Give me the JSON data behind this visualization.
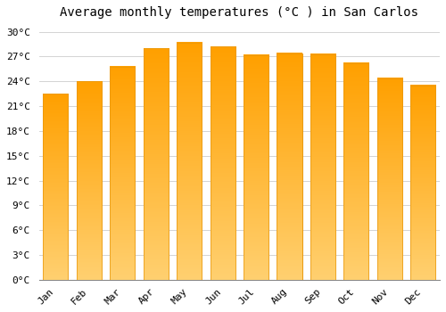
{
  "title": "Average monthly temperatures (°C ) in San Carlos",
  "months": [
    "Jan",
    "Feb",
    "Mar",
    "Apr",
    "May",
    "Jun",
    "Jul",
    "Aug",
    "Sep",
    "Oct",
    "Nov",
    "Dec"
  ],
  "values": [
    22.5,
    24.0,
    25.8,
    28.0,
    28.7,
    28.2,
    27.2,
    27.4,
    27.3,
    26.2,
    24.4,
    23.5
  ],
  "bar_color": "#FFA500",
  "bar_edge_color": "#E8960A",
  "background_color": "#FFFFFF",
  "grid_color": "#CCCCCC",
  "ylim": [
    0,
    31
  ],
  "yticks": [
    0,
    3,
    6,
    9,
    12,
    15,
    18,
    21,
    24,
    27,
    30
  ],
  "title_fontsize": 10,
  "tick_fontsize": 8,
  "font_family": "monospace",
  "label_rotation": 45
}
